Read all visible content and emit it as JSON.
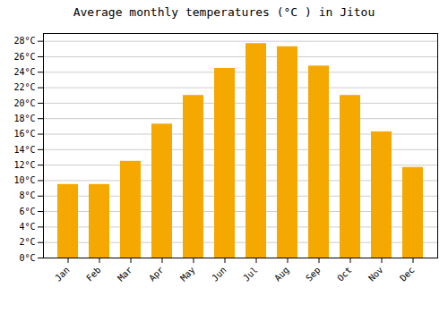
{
  "chart_data": {
    "type": "bar",
    "title": "Average monthly temperatures (°C ) in Jitou",
    "categories": [
      "Jan",
      "Feb",
      "Mar",
      "Apr",
      "May",
      "Jun",
      "Jul",
      "Aug",
      "Sep",
      "Oct",
      "Nov",
      "Dec"
    ],
    "values": [
      9.5,
      9.5,
      12.5,
      17.3,
      21.0,
      24.5,
      27.7,
      27.3,
      24.8,
      21.0,
      16.3,
      11.7
    ],
    "color": "#F5A800",
    "ylim": [
      0,
      29
    ],
    "yticks": [
      {
        "value": 0,
        "label": "0°C"
      },
      {
        "value": 2,
        "label": "2°C"
      },
      {
        "value": 4,
        "label": "4°C"
      },
      {
        "value": 6,
        "label": "6°C"
      },
      {
        "value": 8,
        "label": "8°C"
      },
      {
        "value": 10,
        "label": "10°C"
      },
      {
        "value": 12,
        "label": "12°C"
      },
      {
        "value": 14,
        "label": "14°C"
      },
      {
        "value": 16,
        "label": "16°C"
      },
      {
        "value": 18,
        "label": "18°C"
      },
      {
        "value": 20,
        "label": "20°C"
      },
      {
        "value": 22,
        "label": "22°C"
      },
      {
        "value": 24,
        "label": "24°C"
      },
      {
        "value": 26,
        "label": "26°C"
      },
      {
        "value": 28,
        "label": "28°C"
      }
    ],
    "grid": true
  }
}
